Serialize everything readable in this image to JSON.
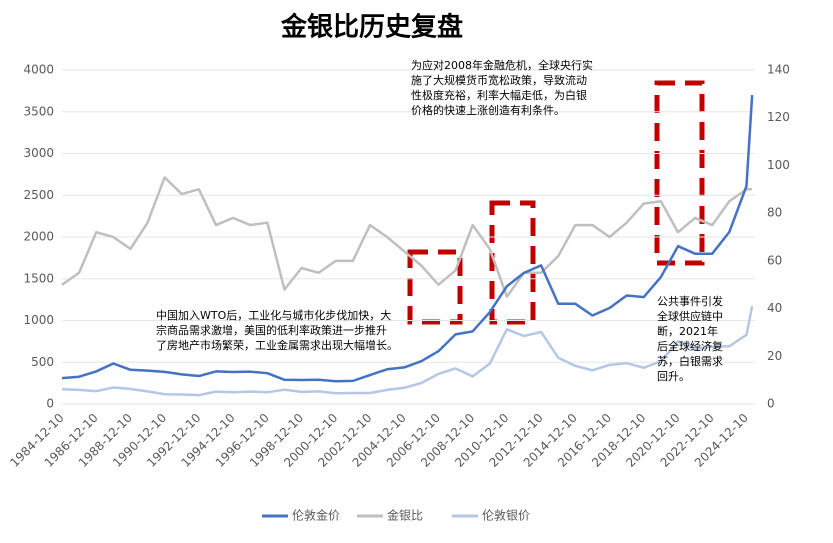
{
  "chart_data": {
    "type": "line",
    "title": "金银比历史复盘",
    "x": [
      "1984-12-10",
      "1985-12-10",
      "1986-12-10",
      "1987-12-10",
      "1988-12-10",
      "1989-12-10",
      "1990-12-10",
      "1991-12-10",
      "1992-12-10",
      "1993-12-10",
      "1994-12-10",
      "1995-12-10",
      "1996-12-10",
      "1997-12-10",
      "1998-12-10",
      "1999-12-10",
      "2000-12-10",
      "2001-12-10",
      "2002-12-10",
      "2003-12-10",
      "2004-12-10",
      "2005-12-10",
      "2006-12-10",
      "2007-12-10",
      "2008-12-10",
      "2009-12-10",
      "2010-12-10",
      "2011-12-10",
      "2012-12-10",
      "2013-12-10",
      "2014-12-10",
      "2015-12-10",
      "2016-12-10",
      "2017-12-10",
      "2018-12-10",
      "2019-12-10",
      "2020-12-10",
      "2021-12-10",
      "2022-12-10",
      "2023-12-10",
      "2024-12-10",
      "2025-04-10"
    ],
    "series": [
      {
        "name": "伦敦金价",
        "color": "#4472c4",
        "axis": "y",
        "values": [
          310,
          327,
          390,
          485,
          410,
          400,
          385,
          355,
          335,
          390,
          383,
          387,
          369,
          290,
          288,
          290,
          272,
          277,
          347,
          416,
          438,
          513,
          632,
          834,
          870,
          1100,
          1410,
          1570,
          1660,
          1200,
          1200,
          1060,
          1150,
          1300,
          1280,
          1520,
          1890,
          1800,
          1800,
          2060,
          2610,
          3700
        ]
      },
      {
        "name": "金银比",
        "color": "#bfbfbf",
        "axis": "y2",
        "values": [
          50,
          55,
          72,
          70,
          65,
          76,
          95,
          88,
          90,
          75,
          78,
          75,
          76,
          48,
          57,
          55,
          60,
          60,
          75,
          70,
          64,
          58,
          50,
          56,
          75,
          65,
          45,
          55,
          55,
          62,
          75,
          75,
          70,
          76,
          84,
          85,
          72,
          78,
          75,
          85,
          90,
          90
        ]
      },
      {
        "name": "伦敦银价",
        "color": "#b4c7e7",
        "axis": "y2",
        "values": [
          6.2,
          5.9,
          5.4,
          6.9,
          6.3,
          5.3,
          4.1,
          4.0,
          3.7,
          5.2,
          4.9,
          5.2,
          4.9,
          6.0,
          5.1,
          5.3,
          4.5,
          4.6,
          4.6,
          5.9,
          6.8,
          8.8,
          12.6,
          14.9,
          11.6,
          16.9,
          31.3,
          28.5,
          30.2,
          19.4,
          16,
          14.1,
          16.4,
          17.1,
          15.2,
          17.9,
          26.3,
          23.1,
          24,
          24.2,
          29,
          41
        ]
      }
    ],
    "xlim": [
      "1984-12-10",
      "2025-06-10"
    ],
    "xticks": [
      "1984-12-10",
      "1986-12-10",
      "1988-12-10",
      "1990-12-10",
      "1992-12-10",
      "1994-12-10",
      "1996-12-10",
      "1998-12-10",
      "2000-12-10",
      "2002-12-10",
      "2004-12-10",
      "2006-12-10",
      "2008-12-10",
      "2010-12-10",
      "2012-12-10",
      "2014-12-10",
      "2016-12-10",
      "2018-12-10",
      "2020-12-10",
      "2022-12-10",
      "2024-12-10"
    ],
    "ylim": [
      0,
      4000
    ],
    "yticks": [
      0,
      500,
      1000,
      1500,
      2000,
      2500,
      3000,
      3500,
      4000
    ],
    "y2lim": [
      0,
      140
    ],
    "y2ticks": [
      0,
      20,
      40,
      60,
      80,
      100,
      120,
      140
    ],
    "grid": true,
    "annotations": [
      [
        "为应对2008年金融危机，全球央行实",
        "施了大规模货币宽松政策，导致流动",
        "性极度充裕，利率大幅走低，为白银",
        "价格的快速上涨创造有利条件。"
      ],
      [
        "中国加入WTO后，工业化与城市化步伐加快，大",
        "宗商品需求激增，美国的低利率政策进一步推升",
        "了房地产市场繁荣，工业金属需求出现大幅增长。"
      ],
      [
        "公共事件引发",
        "全球供应链中",
        "断，2021年",
        "后全球经济复",
        "苏，白银需求",
        "回升。"
      ]
    ]
  }
}
